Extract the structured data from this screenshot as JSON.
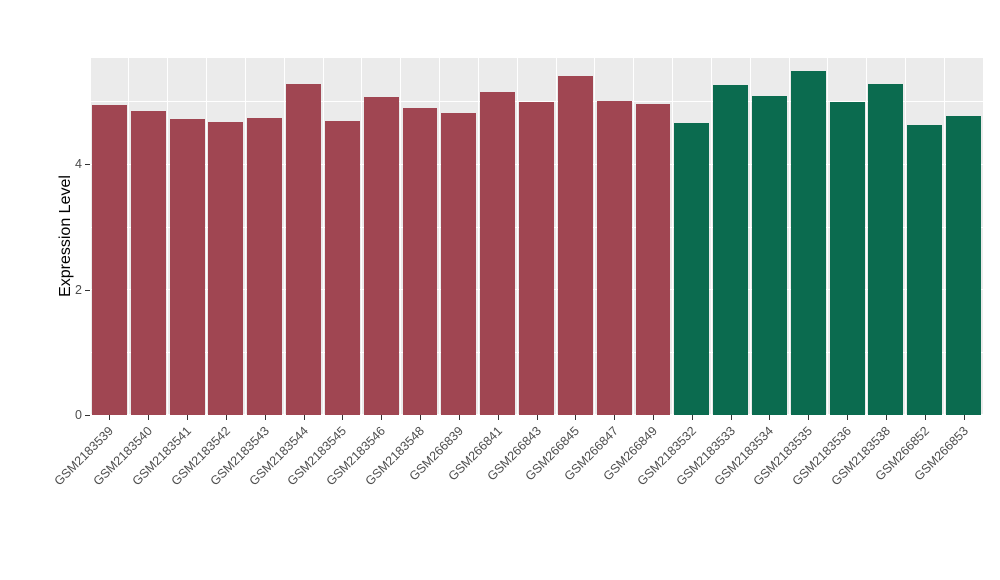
{
  "chart_data": {
    "type": "bar",
    "title": "",
    "xlabel": "",
    "ylabel": "Expression Level",
    "ylim": [
      0,
      5.7
    ],
    "yticks": [
      0,
      2,
      4
    ],
    "minor_yticks": [
      1,
      3,
      5
    ],
    "grid": "on",
    "legend": "none",
    "panel_bg": "#EBEBEB",
    "grid_color": "#FFFFFF",
    "categories": [
      "GSM2183539",
      "GSM2183540",
      "GSM2183541",
      "GSM2183542",
      "GSM2183543",
      "GSM2183544",
      "GSM2183545",
      "GSM2183546",
      "GSM2183548",
      "GSM266839",
      "GSM266841",
      "GSM266843",
      "GSM266845",
      "GSM266847",
      "GSM266849",
      "GSM2183532",
      "GSM2183533",
      "GSM2183534",
      "GSM2183535",
      "GSM2183536",
      "GSM2183538",
      "GSM266852",
      "GSM266853"
    ],
    "values": [
      4.95,
      4.85,
      4.72,
      4.68,
      4.74,
      5.28,
      4.7,
      5.07,
      4.9,
      4.82,
      5.15,
      5.0,
      5.42,
      5.02,
      4.97,
      4.66,
      5.27,
      5.1,
      5.5,
      5.0,
      5.28,
      4.63,
      4.77
    ],
    "series": [
      {
        "name": "group-red",
        "color": "#A04652",
        "count": 15
      },
      {
        "name": "group-green",
        "color": "#0B6B4F",
        "count": 8
      }
    ]
  }
}
